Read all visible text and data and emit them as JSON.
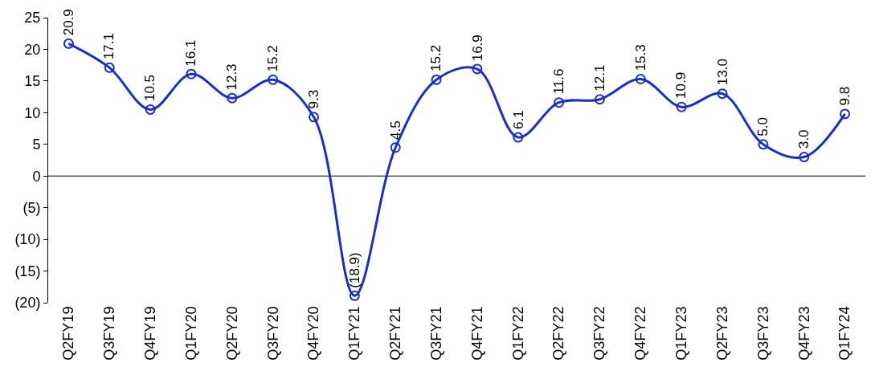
{
  "chart_data": {
    "type": "line",
    "categories": [
      "Q2FY19",
      "Q3FY19",
      "Q4FY19",
      "Q1FY20",
      "Q2FY20",
      "Q3FY20",
      "Q4FY20",
      "Q1FY21",
      "Q2FY21",
      "Q3FY21",
      "Q4FY21",
      "Q1FY22",
      "Q2FY22",
      "Q3FY22",
      "Q4FY22",
      "Q1FY23",
      "Q2FY23",
      "Q3FY23",
      "Q4FY23",
      "Q1FY24"
    ],
    "series": [
      {
        "color": "#1a2ecc",
        "values": [
          20.9,
          17.1,
          10.5,
          16.1,
          12.3,
          15.2,
          9.3,
          -18.9,
          4.5,
          15.2,
          16.9,
          6.1,
          11.6,
          12.1,
          15.3,
          10.9,
          13.0,
          5.0,
          3.0,
          9.8
        ],
        "value_labels": [
          "20.9",
          "17.1",
          "10.5",
          "16.1",
          "12.3",
          "15.2",
          "9.3",
          "(18.9)",
          "4.5",
          "15.2",
          "16.9",
          "6.1",
          "11.6",
          "12.1",
          "15.3",
          "10.9",
          "13.0",
          "5.0",
          "3.0",
          "9.8"
        ]
      }
    ],
    "ylim": [
      -20,
      25
    ],
    "yticks": [
      {
        "value": -20,
        "label": "(20)"
      },
      {
        "value": -15,
        "label": "(15)"
      },
      {
        "value": -10,
        "label": "(10)"
      },
      {
        "value": -5,
        "label": "(5)"
      },
      0,
      5,
      10,
      15,
      20,
      25
    ],
    "ref_lines": [
      {
        "axis": "y",
        "value": 0,
        "color": "#000000"
      }
    ],
    "grid": false,
    "marker": "circle",
    "line_style": "solid"
  }
}
